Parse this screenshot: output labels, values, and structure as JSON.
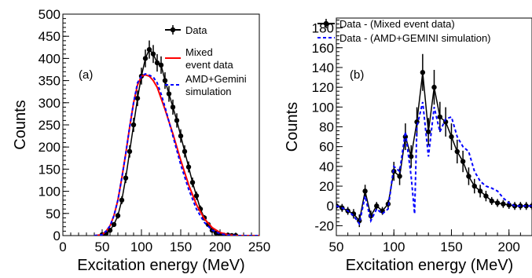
{
  "chart_data": [
    {
      "type": "line",
      "panel_label": "(a)",
      "xlabel": "Excitation energy (MeV)",
      "ylabel": "Counts",
      "xlim": [
        0,
        250
      ],
      "ylim": [
        0,
        500
      ],
      "xticks": [
        0,
        50,
        100,
        150,
        200,
        250
      ],
      "yticks": [
        0,
        50,
        100,
        150,
        200,
        250,
        300,
        350,
        400,
        450,
        500
      ],
      "grid": false,
      "legend_position": "top-right",
      "series": [
        {
          "name": "Data",
          "style": "markers-with-line",
          "color": "#000000",
          "x": [
            50,
            55,
            60,
            65,
            70,
            75,
            80,
            85,
            90,
            95,
            100,
            105,
            110,
            115,
            120,
            125,
            130,
            135,
            140,
            145,
            150,
            155,
            160,
            165,
            170,
            175,
            180,
            185,
            190,
            195,
            200,
            205,
            210,
            215,
            220
          ],
          "y": [
            2,
            5,
            12,
            25,
            45,
            80,
            130,
            190,
            250,
            310,
            360,
            400,
            420,
            410,
            390,
            385,
            350,
            320,
            290,
            260,
            225,
            190,
            155,
            120,
            90,
            60,
            40,
            25,
            12,
            6,
            3,
            1,
            1,
            0,
            0
          ]
        },
        {
          "name": "Mixed\nevent data",
          "style": "solid",
          "color": "#ff0000",
          "x": [
            40,
            50,
            55,
            60,
            65,
            70,
            75,
            80,
            85,
            90,
            95,
            100,
            105,
            110,
            115,
            120,
            125,
            130,
            140,
            150,
            160,
            170,
            180,
            190,
            200,
            210,
            220,
            250
          ],
          "y": [
            0,
            2,
            10,
            22,
            45,
            80,
            130,
            185,
            245,
            300,
            340,
            360,
            363,
            360,
            350,
            335,
            310,
            285,
            230,
            170,
            115,
            70,
            38,
            18,
            7,
            2,
            0,
            0
          ]
        },
        {
          "name": "AMD+Gemini\nsimulation",
          "style": "dashed",
          "color": "#0000ff",
          "x": [
            40,
            50,
            55,
            60,
            65,
            70,
            75,
            80,
            85,
            90,
            95,
            100,
            105,
            110,
            115,
            120,
            125,
            130,
            140,
            150,
            160,
            170,
            180,
            190,
            200,
            210,
            220,
            250
          ],
          "y": [
            0,
            2,
            10,
            22,
            45,
            80,
            130,
            185,
            245,
            300,
            345,
            360,
            365,
            362,
            358,
            345,
            320,
            290,
            225,
            160,
            105,
            60,
            30,
            12,
            4,
            1,
            0,
            0
          ]
        }
      ]
    },
    {
      "type": "line",
      "panel_label": "(b)",
      "xlabel": "Excitation energy (MeV)",
      "ylabel": "Counts",
      "xlim": [
        50,
        220
      ],
      "ylim": [
        -30,
        190
      ],
      "xticks": [
        50,
        100,
        150,
        200
      ],
      "yticks": [
        -20,
        0,
        20,
        40,
        60,
        80,
        100,
        120,
        140,
        160,
        180
      ],
      "grid": false,
      "legend_position": "top",
      "series": [
        {
          "name": "Data - (Mixed event data)",
          "style": "markers-with-line",
          "color": "#000000",
          "x": [
            50,
            55,
            60,
            65,
            70,
            75,
            80,
            85,
            90,
            95,
            100,
            105,
            110,
            115,
            120,
            125,
            130,
            135,
            140,
            145,
            150,
            155,
            160,
            165,
            170,
            175,
            180,
            185,
            190,
            195,
            200,
            205,
            210,
            215,
            220
          ],
          "y": [
            0,
            -2,
            -5,
            -8,
            -15,
            15,
            -10,
            0,
            -5,
            2,
            35,
            30,
            70,
            50,
            85,
            135,
            75,
            120,
            90,
            85,
            70,
            55,
            45,
            30,
            20,
            15,
            10,
            5,
            3,
            2,
            1,
            0,
            0,
            0,
            0
          ]
        },
        {
          "name": "Data - (AMD+GEMINI simulation)",
          "style": "dashed",
          "color": "#0000ff",
          "x": [
            50,
            55,
            60,
            65,
            70,
            75,
            80,
            85,
            90,
            95,
            100,
            105,
            110,
            115,
            118,
            120,
            125,
            130,
            135,
            140,
            145,
            150,
            155,
            160,
            165,
            170,
            175,
            180,
            185,
            190,
            195,
            200,
            205,
            210,
            215,
            220
          ],
          "y": [
            0,
            -2,
            -5,
            -10,
            -18,
            10,
            -15,
            -3,
            -8,
            -3,
            40,
            35,
            75,
            30,
            -8,
            80,
            105,
            50,
            100,
            75,
            88,
            90,
            70,
            60,
            55,
            35,
            25,
            20,
            18,
            15,
            8,
            3,
            0,
            0,
            0,
            0
          ]
        }
      ]
    }
  ]
}
